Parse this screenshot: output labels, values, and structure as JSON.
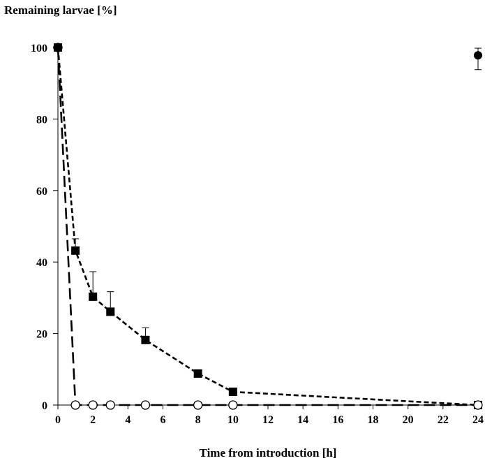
{
  "chart_data": {
    "type": "line",
    "xlabel": "Time from introduction [h]",
    "ylabel": "Remaining larvae [%]",
    "xlim": [
      0,
      24
    ],
    "ylim": [
      0,
      100
    ],
    "x_ticks": [
      "0",
      "2",
      "4",
      "6",
      "8",
      "10",
      "12",
      "14",
      "16",
      "18",
      "20",
      "22",
      "24"
    ],
    "y_ticks": [
      "0",
      "20",
      "40",
      "60",
      "80",
      "100"
    ],
    "grid": false,
    "legend": "none",
    "series": [
      {
        "marker": "filled-square",
        "line": "short-dash",
        "color": "#000000",
        "x": [
          0,
          1,
          2,
          3,
          5,
          8,
          10,
          24
        ],
        "y": [
          100,
          43.2,
          30.3,
          26.1,
          18.2,
          8.8,
          3.7,
          0
        ],
        "err_up": [
          0,
          3.3,
          7,
          5.6,
          3.4,
          0,
          0,
          0
        ]
      },
      {
        "marker": "open-circle",
        "line": "long-dash",
        "color": "#000000",
        "x": [
          0,
          1,
          2,
          3,
          5,
          8,
          10,
          24
        ],
        "y": [
          100,
          0,
          0,
          0,
          0,
          0,
          0,
          0
        ],
        "err_up": [
          0,
          0,
          0,
          0,
          0,
          0,
          0,
          0
        ]
      },
      {
        "marker": "filled-circle",
        "line": "none",
        "color": "#000000",
        "x": [
          0,
          24
        ],
        "y": [
          100,
          97.8
        ],
        "err_up": [
          0,
          2
        ],
        "err_down": [
          0,
          4
        ]
      }
    ]
  }
}
